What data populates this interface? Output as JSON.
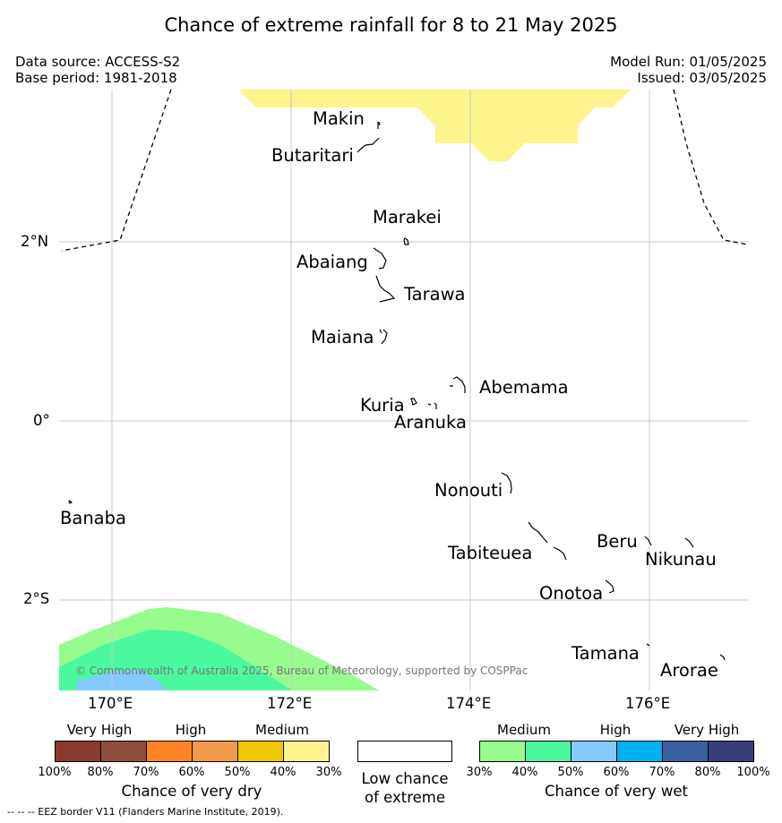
{
  "title": "Chance of extreme rainfall for 8 to 21 May 2025",
  "source": {
    "data_source": "Data source: ACCESS-S2",
    "base_period": "Base period: 1981-2018"
  },
  "run": {
    "model_run": "Model Run: 01/05/2025",
    "issued": "Issued: 03/05/2025"
  },
  "places": {
    "makin": "Makin",
    "butaritari": "Butaritari",
    "marakei": "Marakei",
    "abaiang": "Abaiang",
    "tarawa": "Tarawa",
    "maiana": "Maiana",
    "abemama": "Abemama",
    "kuria": "Kuria",
    "aranuka": "Aranuka",
    "nonouti": "Nonouti",
    "banaba": "Banaba",
    "tabiteuea": "Tabiteuea",
    "beru": "Beru",
    "nikunau": "Nikunau",
    "onotoa": "Onotoa",
    "tamana": "Tamana",
    "arorae": "Arorae"
  },
  "axes": {
    "lat": {
      "n2": "2°N",
      "eq": "0°",
      "s2": "2°S"
    },
    "lon": {
      "e170": "170°E",
      "e172": "172°E",
      "e174": "174°E",
      "e176": "176°E"
    }
  },
  "copyright": "© Commonwealth of Australia 2025, Bureau of Meteorology, supported by COSPPac",
  "legend": {
    "dry": {
      "heads": {
        "very_high": "Very High",
        "high": "High",
        "medium": "Medium"
      },
      "colors": [
        "#8b3a2f",
        "#8f4f3b",
        "#fe8427",
        "#ef9b49",
        "#f2c900",
        "#fdf48e"
      ],
      "ticks": [
        "100%",
        "80%",
        "70%",
        "60%",
        "50%",
        "40%",
        "30%"
      ],
      "caption": "Chance of very dry"
    },
    "low": {
      "line1": "Low chance",
      "line2": "of extreme"
    },
    "wet": {
      "heads": {
        "medium": "Medium",
        "high": "High",
        "very_high": "Very High"
      },
      "colors": [
        "#98fb8e",
        "#4cf89d",
        "#84caff",
        "#00b1f1",
        "#3960a0",
        "#3a3c7c"
      ],
      "ticks": [
        "30%",
        "40%",
        "50%",
        "60%",
        "70%",
        "80%",
        "100%"
      ],
      "caption": "Chance of very wet"
    }
  },
  "footnote": "--  --  -- EEZ border V11 (Flanders Marine Institute, 2019)."
}
